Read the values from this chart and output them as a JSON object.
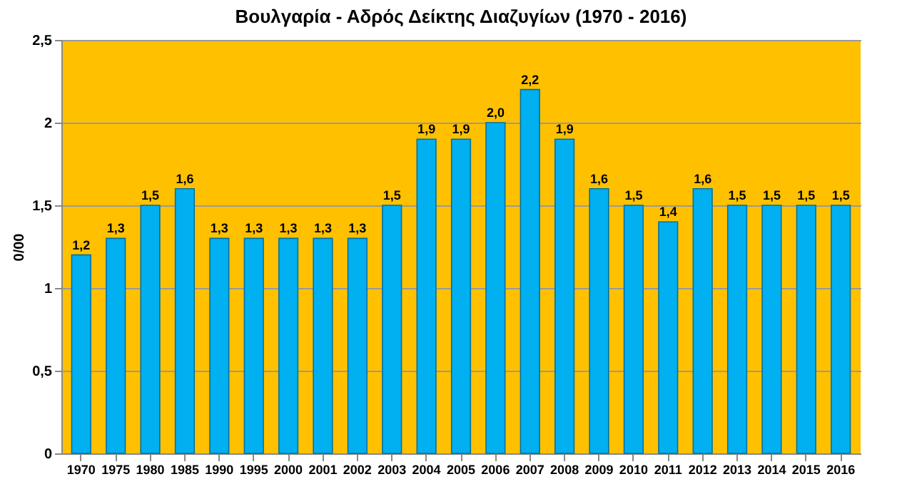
{
  "chart_data": {
    "type": "bar",
    "title": "Βουλγαρία - Αδρός Δείκτης Διαζυγίων (1970 - 2016)",
    "ylabel": "0/00",
    "categories": [
      "1970",
      "1975",
      "1980",
      "1985",
      "1990",
      "1995",
      "2000",
      "2001",
      "2002",
      "2003",
      "2004",
      "2005",
      "2006",
      "2007",
      "2008",
      "2009",
      "2010",
      "2011",
      "2012",
      "2013",
      "2014",
      "2015",
      "2016"
    ],
    "values": [
      1.2,
      1.3,
      1.5,
      1.6,
      1.3,
      1.3,
      1.3,
      1.3,
      1.3,
      1.5,
      1.9,
      1.9,
      2.0,
      2.2,
      1.9,
      1.6,
      1.5,
      1.4,
      1.6,
      1.5,
      1.5,
      1.5,
      1.5
    ],
    "value_labels": [
      "1,2",
      "1,3",
      "1,5",
      "1,6",
      "1,3",
      "1,3",
      "1,3",
      "1,3",
      "1,3",
      "1,5",
      "1,9",
      "1,9",
      "2,0",
      "2,2",
      "1,9",
      "1,6",
      "1,5",
      "1,4",
      "1,6",
      "1,5",
      "1,5",
      "1,5",
      "1,5"
    ],
    "color": "#00b0f0",
    "ylim": [
      0,
      2.5
    ],
    "yticks": [
      0,
      {
        "value": 0.5,
        "label": "0,5"
      },
      1,
      {
        "value": 1.5,
        "label": "1,5"
      },
      2,
      {
        "value": 2.5,
        "label": "2,5"
      }
    ],
    "grid": "y"
  }
}
